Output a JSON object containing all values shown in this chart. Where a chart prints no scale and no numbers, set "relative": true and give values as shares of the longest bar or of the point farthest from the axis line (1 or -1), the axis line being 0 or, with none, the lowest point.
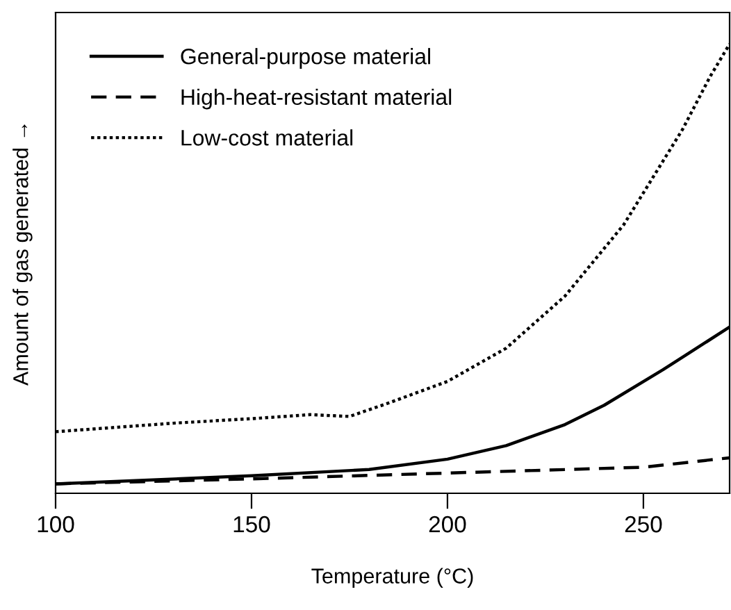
{
  "chart_data": {
    "type": "line",
    "xlabel": "Temperature (°C)",
    "ylabel": "Amount of gas generated →",
    "relative": true,
    "xlim": [
      100,
      272
    ],
    "xticks": [
      100,
      150,
      200,
      250
    ],
    "grid": false,
    "legend": "top left",
    "tick_labels": "x",
    "series": [
      {
        "name": "General-purpose material",
        "color": "#000000",
        "line_style": "solid",
        "x": [
          100,
          150,
          180,
          200,
          215,
          230,
          240,
          255,
          272
        ],
        "values": [
          0.021,
          0.039,
          0.053,
          0.076,
          0.106,
          0.153,
          0.196,
          0.275,
          0.37
        ]
      },
      {
        "name": "High-heat-resistant material",
        "color": "#000000",
        "line_style": "dashed",
        "x": [
          100,
          150,
          200,
          250,
          272
        ],
        "values": [
          0.021,
          0.032,
          0.045,
          0.058,
          0.079
        ]
      },
      {
        "name": "Low-cost material",
        "color": "#000000",
        "line_style": "dotted",
        "x": [
          100,
          130,
          150,
          165,
          175,
          185,
          200,
          215,
          230,
          245,
          260,
          267,
          272
        ],
        "values": [
          0.137,
          0.156,
          0.166,
          0.175,
          0.171,
          0.201,
          0.249,
          0.323,
          0.439,
          0.598,
          0.81,
          0.927,
          1.0
        ]
      }
    ]
  }
}
